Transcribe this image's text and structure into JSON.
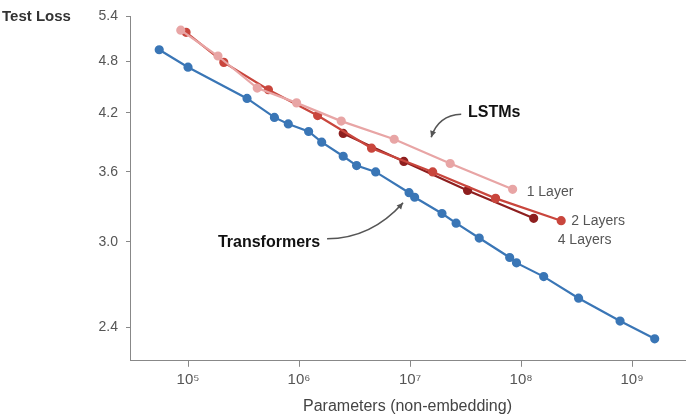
{
  "chart_data": {
    "type": "line",
    "y_label": "Test Loss",
    "x_label": "Parameters (non-embedding)",
    "annotations": [
      "LSTMs"
    ],
    "log": true,
    "grid": false,
    "marker": "circle",
    "line_style": "solid",
    "xlim": [
      30000,
      3000000000
    ],
    "ylim": [
      2.2,
      5.4
    ],
    "xticks": [
      {
        "value": 100000,
        "label": "10⁵"
      },
      {
        "value": 1000000,
        "label": "10⁶"
      },
      {
        "value": 10000000,
        "label": "10⁷"
      },
      {
        "value": 100000000,
        "label": "10⁸"
      },
      {
        "value": 1000000000,
        "label": "10⁹"
      }
    ],
    "yticks": [
      2.4,
      {
        "value": 3,
        "label": "3.0"
      },
      3.6,
      4.2,
      4.8,
      5.4
    ],
    "series": [
      {
        "name": "Transformers",
        "color": "#3a76b6",
        "x": [
          55000,
          100000,
          340000,
          600000,
          800000,
          1220000,
          1600000,
          2500000,
          3300000,
          4900000,
          9800000,
          11000000,
          19400000,
          26000000,
          42000000,
          79000000,
          91000000,
          160000000,
          330000000,
          780000000,
          1600000000
        ],
        "values": [
          4.95,
          4.73,
          4.36,
          4.15,
          4.08,
          4.0,
          3.89,
          3.75,
          3.66,
          3.6,
          3.41,
          3.37,
          3.23,
          3.15,
          3.03,
          2.88,
          2.84,
          2.74,
          2.59,
          2.44,
          2.33
        ]
      },
      {
        "name": "1 Layer",
        "color": "#e8a5a5",
        "x": [
          86000,
          186000,
          420000,
          950000,
          2400000,
          7200000,
          23000000,
          84000000
        ],
        "values": [
          5.21,
          4.87,
          4.48,
          4.31,
          4.11,
          3.92,
          3.68,
          3.44
        ]
      },
      {
        "name": "2 Layers",
        "color": "#c9463d",
        "x": [
          96000,
          210000,
          530000,
          1470000,
          4500000,
          16000000,
          59000000,
          230000000
        ],
        "values": [
          5.18,
          4.79,
          4.46,
          4.17,
          3.83,
          3.6,
          3.36,
          3.17
        ]
      },
      {
        "name": "4 Layers",
        "color": "#8e1f1f",
        "x": [
          2500000,
          8800000,
          33000000,
          130000000
        ],
        "values": [
          3.98,
          3.7,
          3.43,
          3.19
        ]
      }
    ]
  }
}
